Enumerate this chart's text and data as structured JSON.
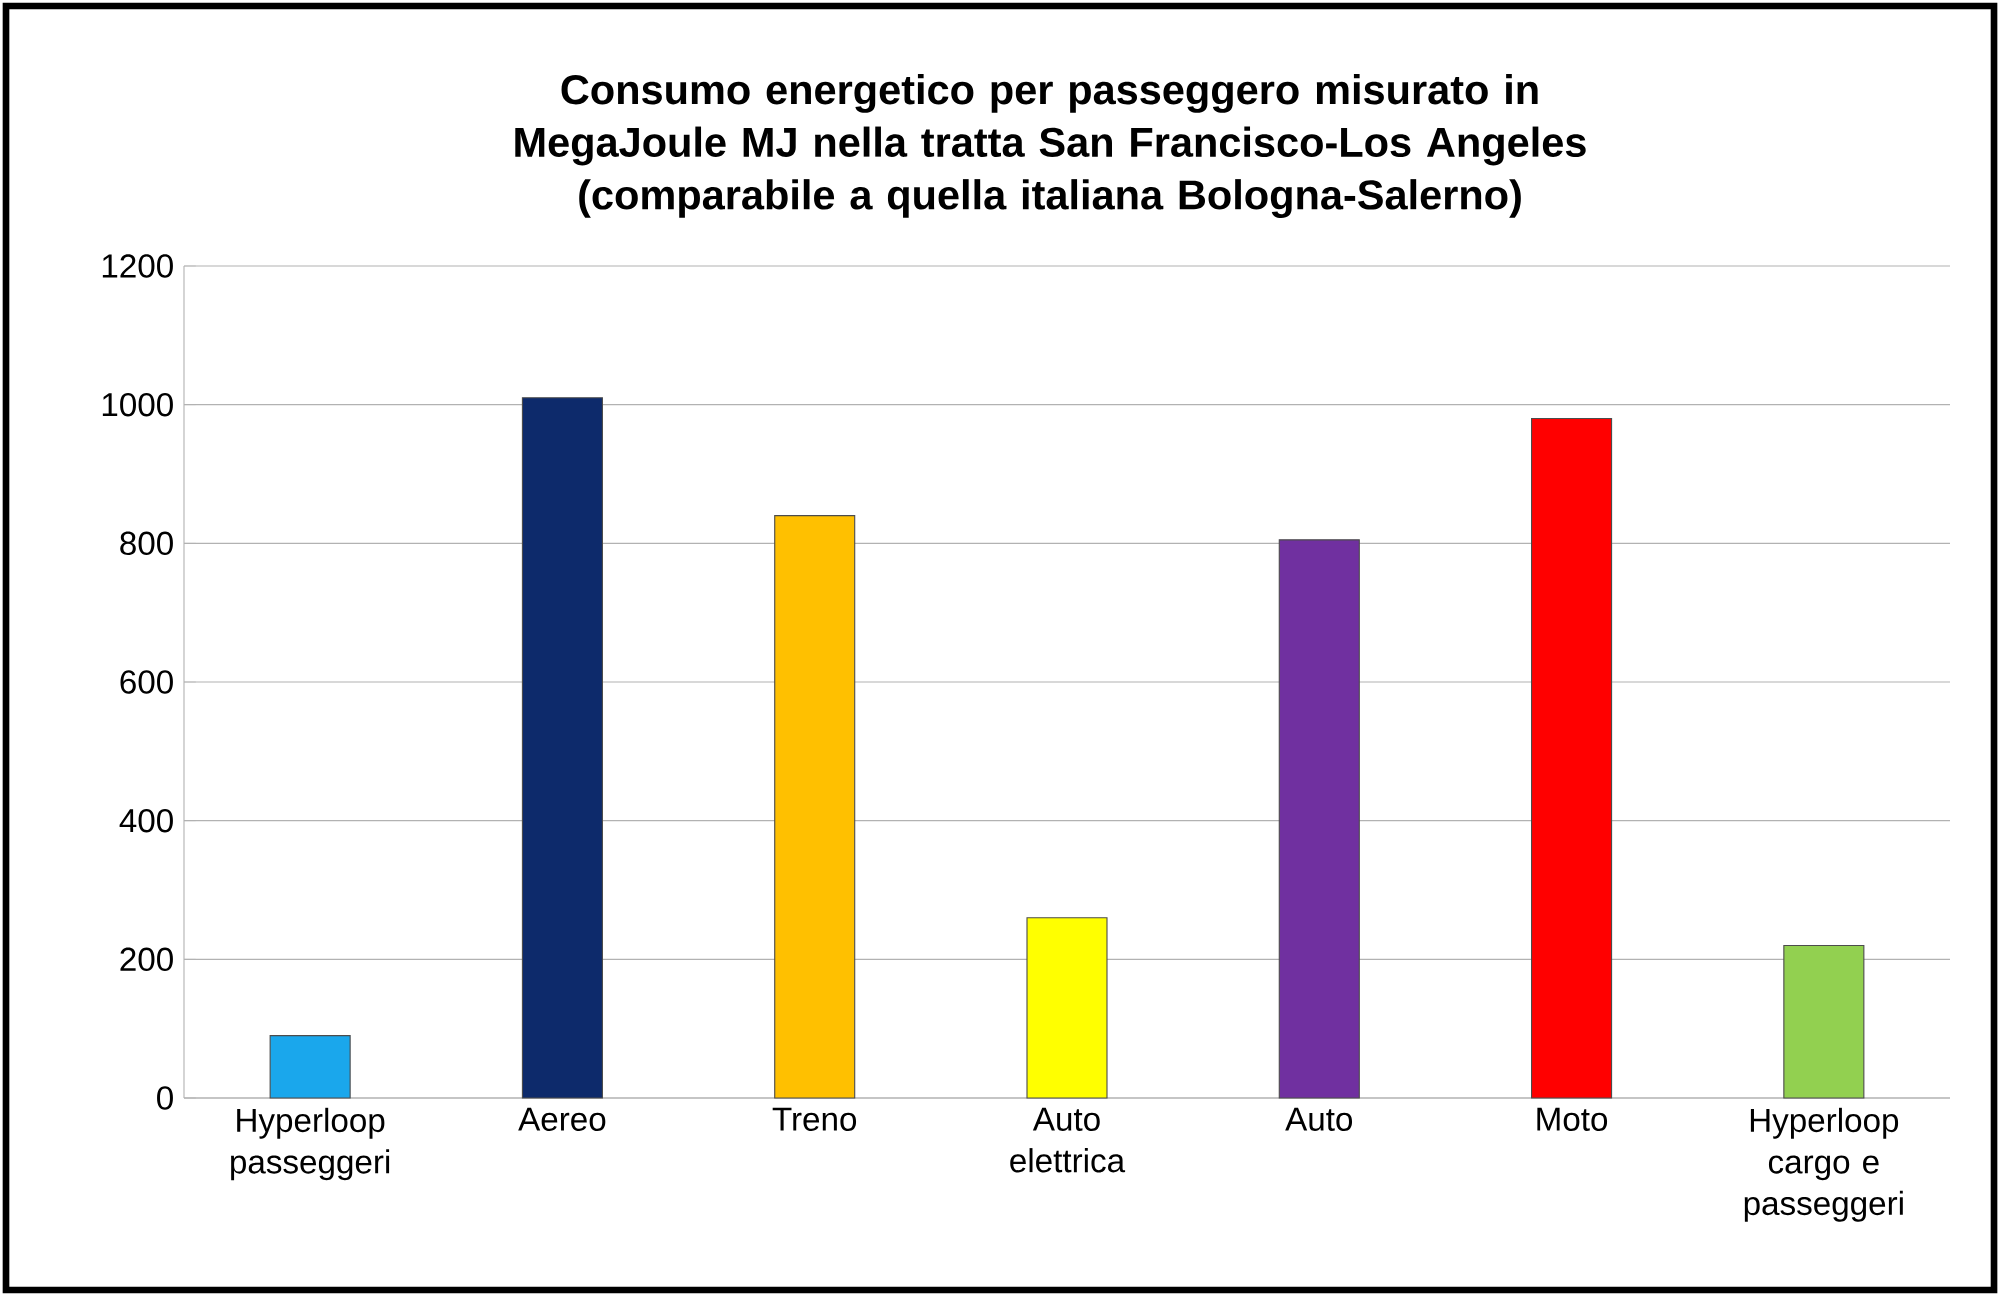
{
  "chart_data": {
    "type": "bar",
    "title": "Consumo energetico per passeggero misurato in MegaJoule MJ nella tratta San Francisco-Los Angeles (comparabile a quella italiana Bologna-Salerno)",
    "categories": [
      "Hyperloop passeggeri",
      "Aereo",
      "Treno",
      "Auto elettrica",
      "Auto",
      "Moto",
      "Hyperloop cargo e passeggeri"
    ],
    "values": [
      90,
      1010,
      840,
      260,
      805,
      980,
      220
    ],
    "colors": [
      "#1aa7ec",
      "#0d2a6b",
      "#ffc000",
      "#ffff00",
      "#7030a0",
      "#ff0000",
      "#92d050"
    ],
    "ylim": [
      0,
      1200
    ],
    "yticks": [
      0,
      200,
      400,
      600,
      800,
      1000,
      1200
    ],
    "grid": "y"
  }
}
